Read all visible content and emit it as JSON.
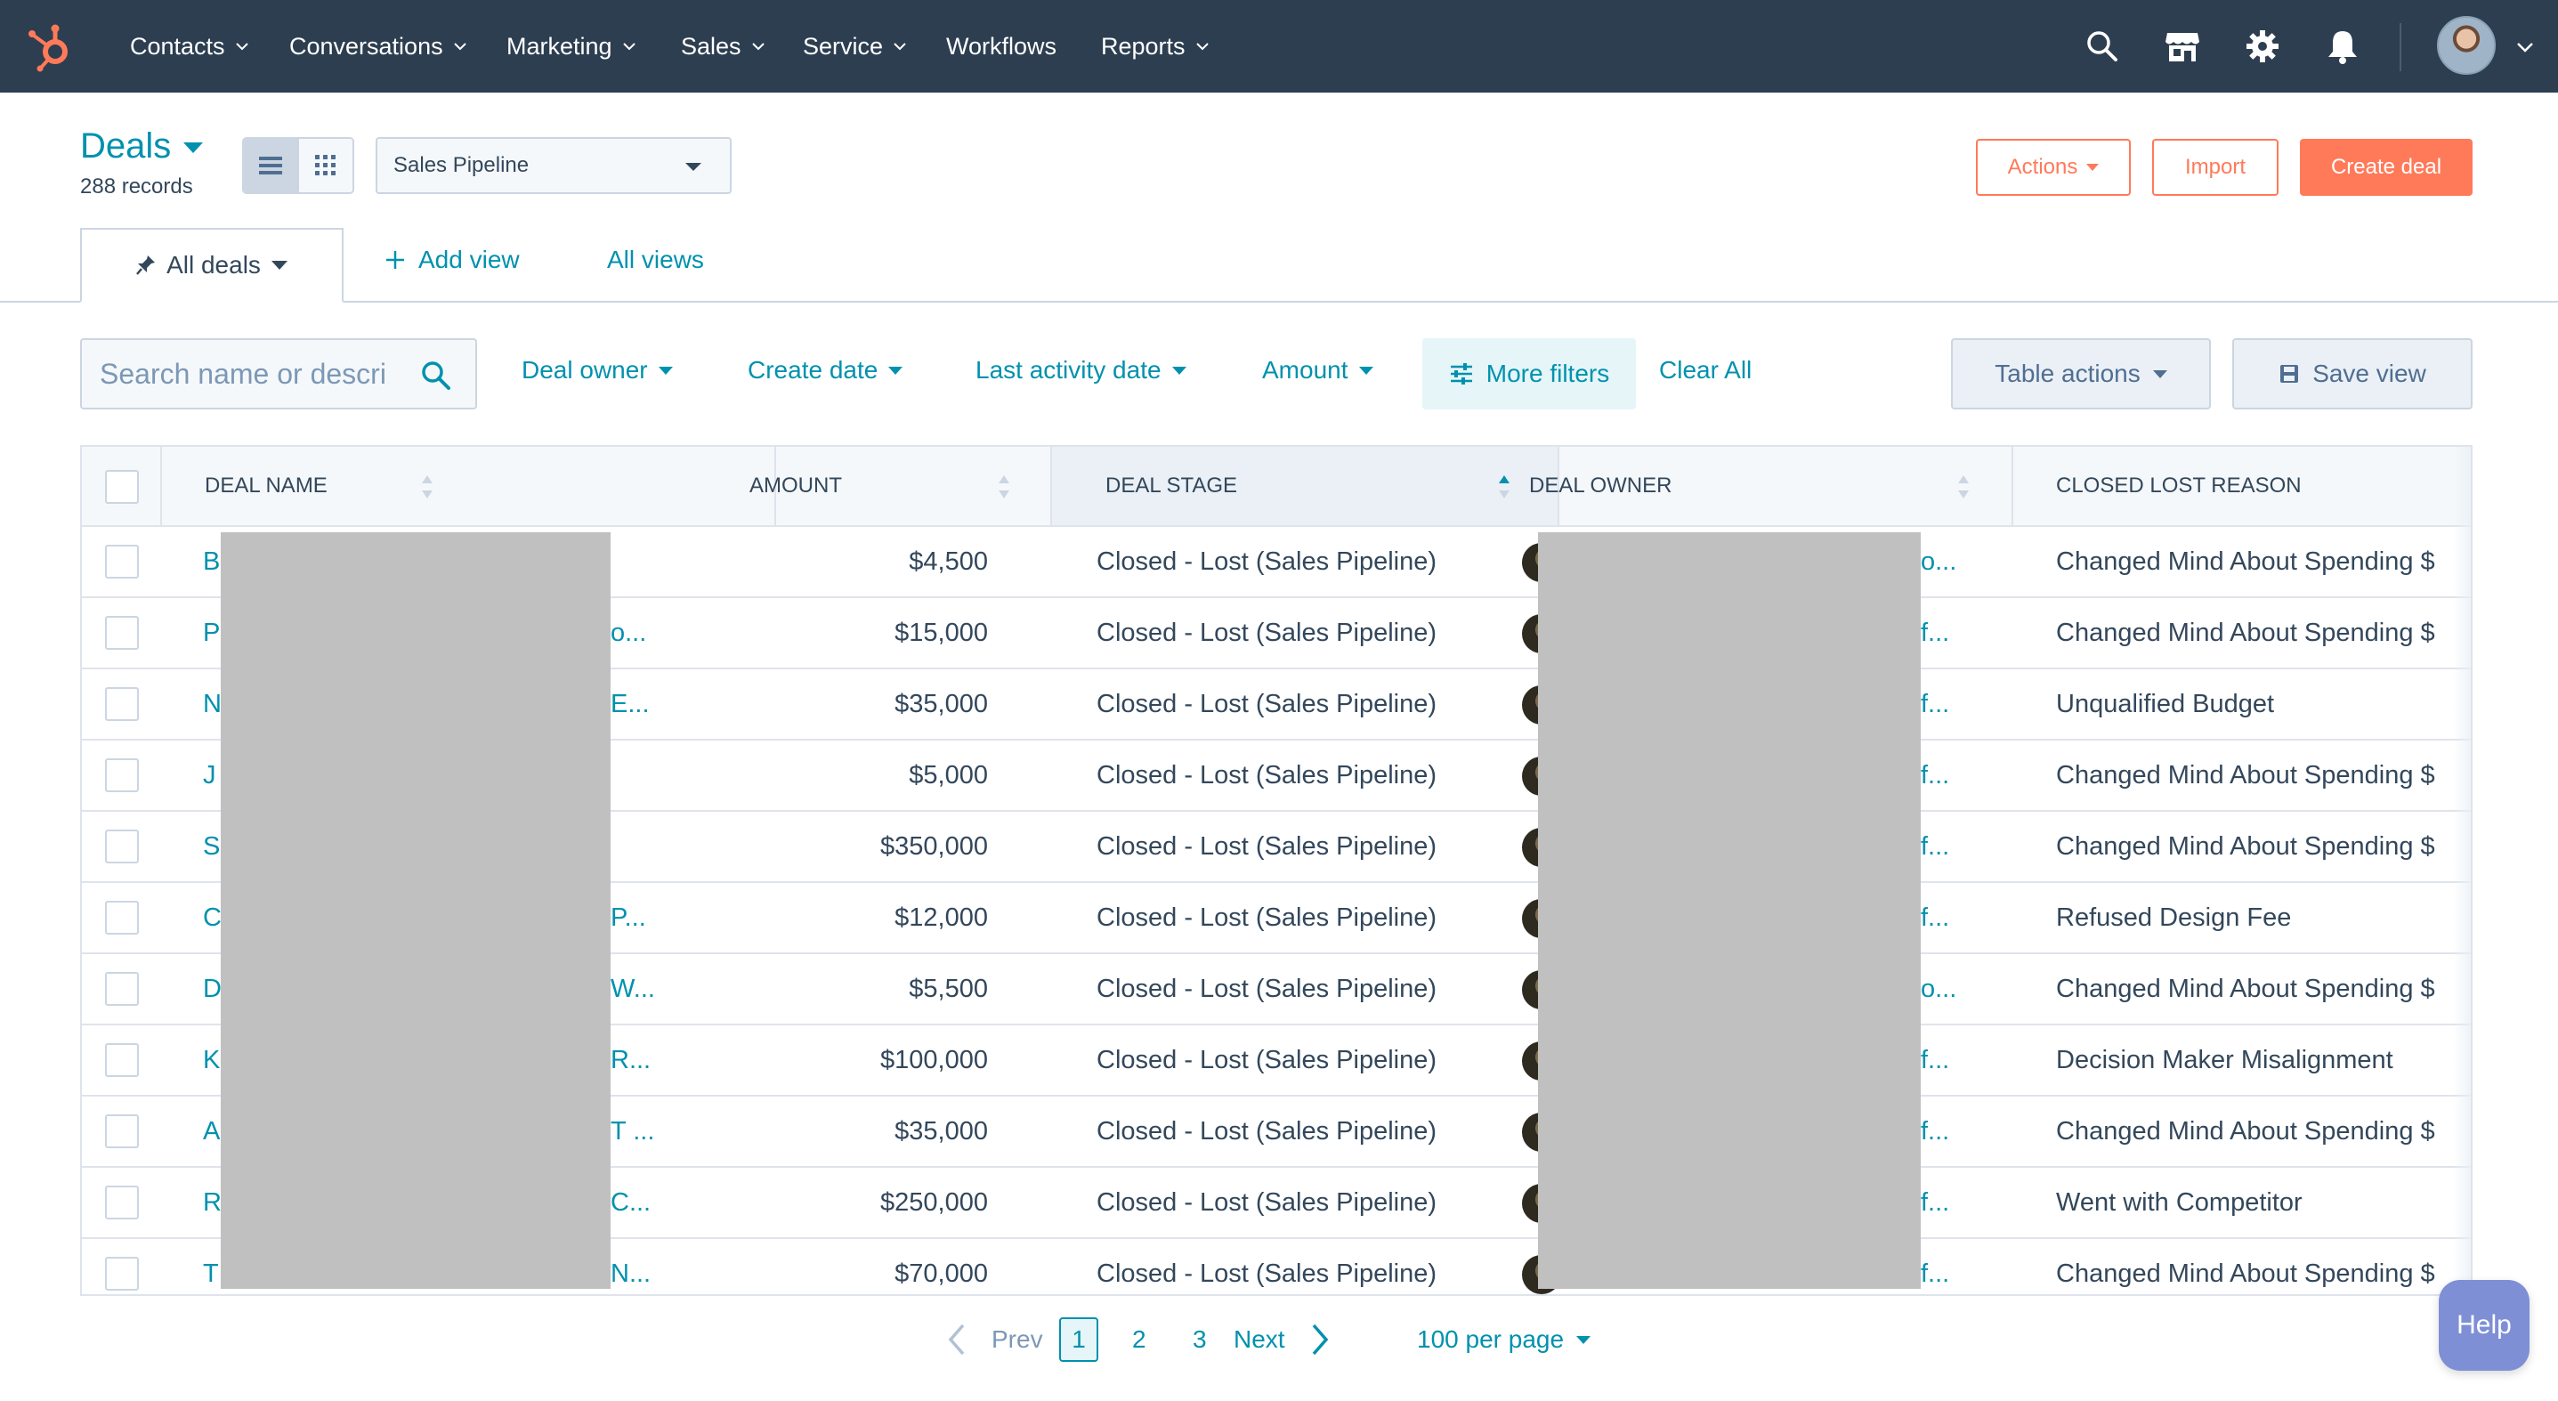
{
  "nav": {
    "items": [
      {
        "label": "Contacts",
        "dropdown": true
      },
      {
        "label": "Conversations",
        "dropdown": true
      },
      {
        "label": "Marketing",
        "dropdown": true
      },
      {
        "label": "Sales",
        "dropdown": true
      },
      {
        "label": "Service",
        "dropdown": true
      },
      {
        "label": "Workflows",
        "dropdown": false
      },
      {
        "label": "Reports",
        "dropdown": true
      }
    ],
    "icons": [
      "search-icon",
      "marketplace-icon",
      "settings-gear-icon",
      "notifications-bell-icon"
    ],
    "background": "#2d3e50",
    "logo_color": "#ff7a59"
  },
  "header": {
    "title": "Deals",
    "records": "288 records",
    "pipeline_select": "Sales Pipeline",
    "actions_label": "Actions",
    "import_label": "Import",
    "create_label": "Create deal"
  },
  "tabs": {
    "active": "All deals",
    "add_view": "Add view",
    "all_views": "All views"
  },
  "filters": {
    "search_placeholder": "Search name or descri",
    "deal_owner": "Deal owner",
    "create_date": "Create date",
    "last_activity_date": "Last activity date",
    "amount": "Amount",
    "more_filters": "More filters",
    "clear_all": "Clear All",
    "table_actions": "Table actions",
    "save_view": "Save view"
  },
  "table": {
    "columns": [
      "DEAL NAME",
      "AMOUNT",
      "DEAL STAGE",
      "DEAL OWNER",
      "CLOSED LOST REASON"
    ],
    "sorted_column": "DEAL STAGE",
    "rows": [
      {
        "name_start": "B",
        "name_end": "",
        "amount": "$4,500",
        "stage": "Closed - Lost (Sales Pipeline)",
        "owner_end": "o...",
        "reason": "Changed Mind About Spending $"
      },
      {
        "name_start": "P",
        "name_end": "o...",
        "amount": "$15,000",
        "stage": "Closed - Lost (Sales Pipeline)",
        "owner_end": "f...",
        "reason": "Changed Mind About Spending $"
      },
      {
        "name_start": "N",
        "name_end": "E...",
        "amount": "$35,000",
        "stage": "Closed - Lost (Sales Pipeline)",
        "owner_end": "f...",
        "reason": "Unqualified Budget"
      },
      {
        "name_start": "J",
        "name_end": "",
        "amount": "$5,000",
        "stage": "Closed - Lost (Sales Pipeline)",
        "owner_end": "f...",
        "reason": "Changed Mind About Spending $"
      },
      {
        "name_start": "S",
        "name_end": "",
        "amount": "$350,000",
        "stage": "Closed - Lost (Sales Pipeline)",
        "owner_end": "f...",
        "reason": "Changed Mind About Spending $"
      },
      {
        "name_start": "C",
        "name_end": "P...",
        "amount": "$12,000",
        "stage": "Closed - Lost (Sales Pipeline)",
        "owner_end": "f...",
        "reason": "Refused Design Fee"
      },
      {
        "name_start": "D",
        "name_end": "W...",
        "amount": "$5,500",
        "stage": "Closed - Lost (Sales Pipeline)",
        "owner_end": "o...",
        "reason": "Changed Mind About Spending $"
      },
      {
        "name_start": "K",
        "name_end": "R...",
        "amount": "$100,000",
        "stage": "Closed - Lost (Sales Pipeline)",
        "owner_end": "f...",
        "reason": "Decision Maker Misalignment"
      },
      {
        "name_start": "A",
        "name_end": "T ...",
        "amount": "$35,000",
        "stage": "Closed - Lost (Sales Pipeline)",
        "owner_end": "f...",
        "reason": "Changed Mind About Spending $"
      },
      {
        "name_start": "R",
        "name_end": "C...",
        "amount": "$250,000",
        "stage": "Closed - Lost (Sales Pipeline)",
        "owner_end": "f...",
        "reason": "Went with Competitor"
      },
      {
        "name_start": "T",
        "name_end": "N...",
        "amount": "$70,000",
        "stage": "Closed - Lost (Sales Pipeline)",
        "owner_end": "f...",
        "reason": "Changed Mind About Spending $"
      }
    ]
  },
  "pagination": {
    "prev": "Prev",
    "pages": [
      "1",
      "2",
      "3"
    ],
    "current": "1",
    "next": "Next",
    "per_page": "100 per page"
  },
  "help_label": "Help",
  "colors": {
    "accent": "#0091ae",
    "brand_orange": "#ff7a59",
    "text": "#33475b",
    "border": "#cbd6e2",
    "redaction": "#c0c0c0"
  }
}
